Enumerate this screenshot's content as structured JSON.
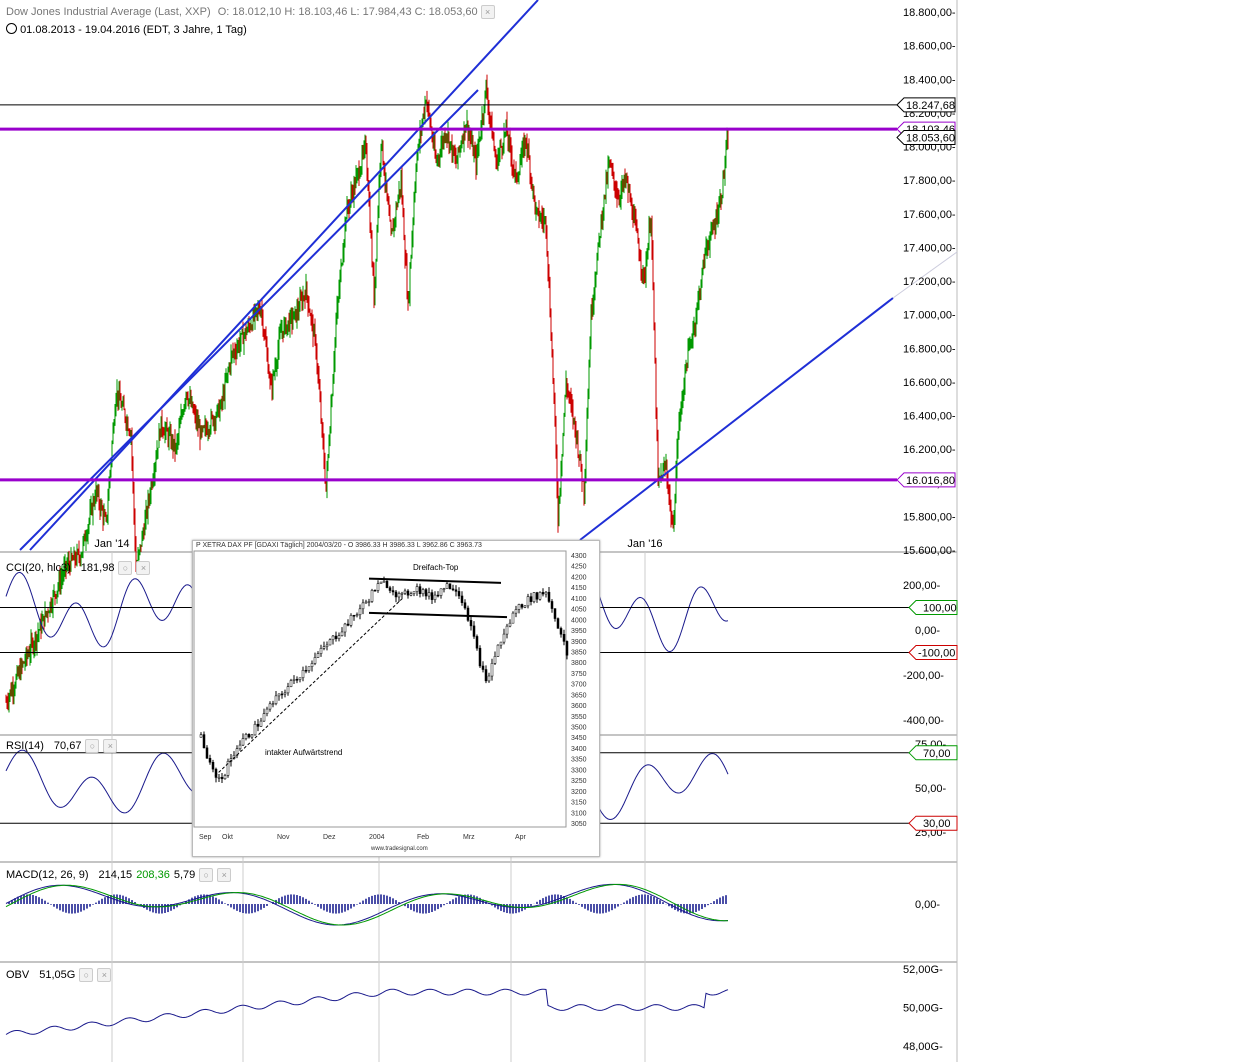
{
  "header": {
    "symbol": "Dow Jones Industrial Average (Last, XXP)",
    "ohlc": "O: 18.012,10  H: 18.103,46  L: 17.984,43  C: 18.053,60",
    "range": "01.08.2013 - 19.04.2016 (EDT, 3 Jahre, 1 Tag)",
    "icons": [
      "clock-icon",
      "close-icon"
    ]
  },
  "chart_data": [
    {
      "type": "candlestick",
      "name": "price",
      "y_ticks": [
        "18.800,00",
        "18.600,00",
        "18.400,00",
        "18.200,00",
        "18.000,00",
        "17.800,00",
        "17.600,00",
        "17.400,00",
        "17.200,00",
        "17.000,00",
        "16.800,00",
        "16.600,00",
        "16.400,00",
        "16.200,00",
        "16.000,00",
        "15.800,00",
        "15.600,00"
      ],
      "y_values": [
        18800,
        18600,
        18400,
        18200,
        18000,
        17800,
        17600,
        17400,
        17200,
        17000,
        16800,
        16600,
        16400,
        16200,
        16000,
        15800,
        15600
      ],
      "x_ticks": [
        "Jan '14",
        "Jan '16"
      ],
      "price_path": [
        [
          0,
          14700
        ],
        [
          35,
          15150
        ],
        [
          60,
          15500
        ],
        [
          75,
          15580
        ],
        [
          90,
          15950
        ],
        [
          100,
          15750
        ],
        [
          110,
          16550
        ],
        [
          125,
          16300
        ],
        [
          130,
          15480
        ],
        [
          140,
          15800
        ],
        [
          155,
          16350
        ],
        [
          170,
          16200
        ],
        [
          180,
          16550
        ],
        [
          195,
          16280
        ],
        [
          215,
          16450
        ],
        [
          225,
          16750
        ],
        [
          240,
          16900
        ],
        [
          255,
          17050
        ],
        [
          265,
          16550
        ],
        [
          275,
          16900
        ],
        [
          290,
          17000
        ],
        [
          300,
          17150
        ],
        [
          310,
          16800
        ],
        [
          320,
          15960
        ],
        [
          330,
          16950
        ],
        [
          340,
          17600
        ],
        [
          350,
          17800
        ],
        [
          360,
          18000
        ],
        [
          368,
          17100
        ],
        [
          375,
          18050
        ],
        [
          385,
          17450
        ],
        [
          395,
          17800
        ],
        [
          402,
          17050
        ],
        [
          410,
          17900
        ],
        [
          420,
          18300
        ],
        [
          430,
          17900
        ],
        [
          440,
          18100
        ],
        [
          450,
          17900
        ],
        [
          460,
          18150
        ],
        [
          470,
          17900
        ],
        [
          480,
          18350
        ],
        [
          490,
          17900
        ],
        [
          500,
          18100
        ],
        [
          510,
          17800
        ],
        [
          520,
          18050
        ],
        [
          530,
          17600
        ],
        [
          540,
          17550
        ],
        [
          548,
          16500
        ],
        [
          552,
          15800
        ],
        [
          560,
          16600
        ],
        [
          570,
          16300
        ],
        [
          578,
          15950
        ],
        [
          585,
          17000
        ],
        [
          595,
          17550
        ],
        [
          603,
          17900
        ],
        [
          612,
          17700
        ],
        [
          620,
          17800
        ],
        [
          630,
          17500
        ],
        [
          638,
          17200
        ],
        [
          645,
          17600
        ],
        [
          652,
          16000
        ],
        [
          660,
          16100
        ],
        [
          667,
          15700
        ],
        [
          672,
          16300
        ],
        [
          680,
          16700
        ],
        [
          690,
          17000
        ],
        [
          700,
          17400
        ],
        [
          707,
          17500
        ],
        [
          715,
          17700
        ],
        [
          722,
          18053.6
        ]
      ],
      "horizontal_levels": [
        {
          "label": "18.247,68",
          "value": 18247.68,
          "color": "#000000"
        },
        {
          "label": "18.103,46",
          "value": 18103.46,
          "color": "#9900cc"
        },
        {
          "label": "18.053,60",
          "value": 18053.6,
          "color": "#000000"
        },
        {
          "label": "16.016,80",
          "value": 16016.8,
          "color": "#9900cc"
        }
      ],
      "trend_lines": [
        "upper-channel-line",
        "lower-channel-line",
        "rising-support-line"
      ],
      "colors": {
        "up": "#009900",
        "down": "#cc0000",
        "trend": "#1f2fd6",
        "level": "#9900cc"
      }
    },
    {
      "type": "line",
      "name": "CCI",
      "title": "CCI(20, hlc3)",
      "last_value": "181,98",
      "y_ticks": [
        "200,00",
        "0,00",
        "-200,00",
        "-400,00"
      ],
      "y_values": [
        200,
        0,
        -200,
        -400
      ],
      "levels": [
        {
          "label": "100,00",
          "value": 100,
          "color": "#009900"
        },
        {
          "label": "-100,00",
          "value": -100,
          "color": "#cc0000"
        }
      ],
      "color": "#1a1a8c"
    },
    {
      "type": "line",
      "name": "RSI",
      "title": "RSI(14)",
      "last_value": "70,67",
      "y_ticks": [
        "75,00",
        "50,00",
        "25,00"
      ],
      "y_values": [
        75,
        50,
        25
      ],
      "levels": [
        {
          "label": "70,00",
          "value": 70,
          "color": "#009900"
        },
        {
          "label": "30,00",
          "value": 30,
          "color": "#cc0000"
        }
      ],
      "color": "#1a1a8c"
    },
    {
      "type": "line",
      "name": "MACD",
      "title": "MACD(12, 26, 9)",
      "values_shown": [
        "214,15",
        "208,36",
        "5,79"
      ],
      "value_colors": [
        "#1a1a8c",
        "#009900",
        "#1a1a8c"
      ],
      "y_ticks": [
        "0,00"
      ],
      "y_values": [
        0
      ],
      "color": "#1a1a8c"
    },
    {
      "type": "line",
      "name": "OBV",
      "title": "OBV",
      "last_value": "51,05G",
      "y_ticks": [
        "52,00G",
        "50,00G",
        "48,00G"
      ],
      "y_values": [
        52,
        50,
        48
      ],
      "color": "#1a1a8c"
    }
  ],
  "inset": {
    "title": "P XETRA DAX PF  [GDAXI  Täglich] 2004/03/20 - O 3986.33 H 3986.33 L 3962.86 C 3963.73",
    "annotation_top": "Dreifach-Top",
    "annotation_trend": "intakter Aufwärtstrend",
    "footer": "www.tradesignal.com",
    "x_ticks": [
      "Sep",
      "Okt",
      "Nov",
      "Dez",
      "2004",
      "Feb",
      "Mrz",
      "Apr"
    ],
    "y_ticks": [
      "4300",
      "4250",
      "4200",
      "4150",
      "4100",
      "4050",
      "4000",
      "3950",
      "3900",
      "3850",
      "3800",
      "3750",
      "3700",
      "3650",
      "3600",
      "3550",
      "3500",
      "3450",
      "3400",
      "3350",
      "3300",
      "3250",
      "3200",
      "3150",
      "3100",
      "3050"
    ],
    "y_values": [
      4300,
      4250,
      4200,
      4150,
      4100,
      4050,
      4000,
      3950,
      3900,
      3850,
      3800,
      3750,
      3700,
      3650,
      3600,
      3550,
      3500,
      3450,
      3400,
      3350,
      3300,
      3250,
      3200,
      3150,
      3100,
      3050
    ],
    "price_path": [
      [
        0,
        3450
      ],
      [
        10,
        3300
      ],
      [
        20,
        3250
      ],
      [
        35,
        3400
      ],
      [
        55,
        3500
      ],
      [
        70,
        3600
      ],
      [
        90,
        3700
      ],
      [
        110,
        3800
      ],
      [
        130,
        3900
      ],
      [
        150,
        4000
      ],
      [
        165,
        4080
      ],
      [
        175,
        4150
      ],
      [
        185,
        4170
      ],
      [
        200,
        4100
      ],
      [
        215,
        4150
      ],
      [
        230,
        4100
      ],
      [
        245,
        4160
      ],
      [
        255,
        4150
      ],
      [
        265,
        4050
      ],
      [
        275,
        3870
      ],
      [
        285,
        3700
      ],
      [
        295,
        3850
      ],
      [
        305,
        3950
      ],
      [
        315,
        4050
      ],
      [
        330,
        4100
      ],
      [
        345,
        4130
      ],
      [
        355,
        4000
      ],
      [
        362,
        3900
      ],
      [
        368,
        3800
      ]
    ]
  }
}
